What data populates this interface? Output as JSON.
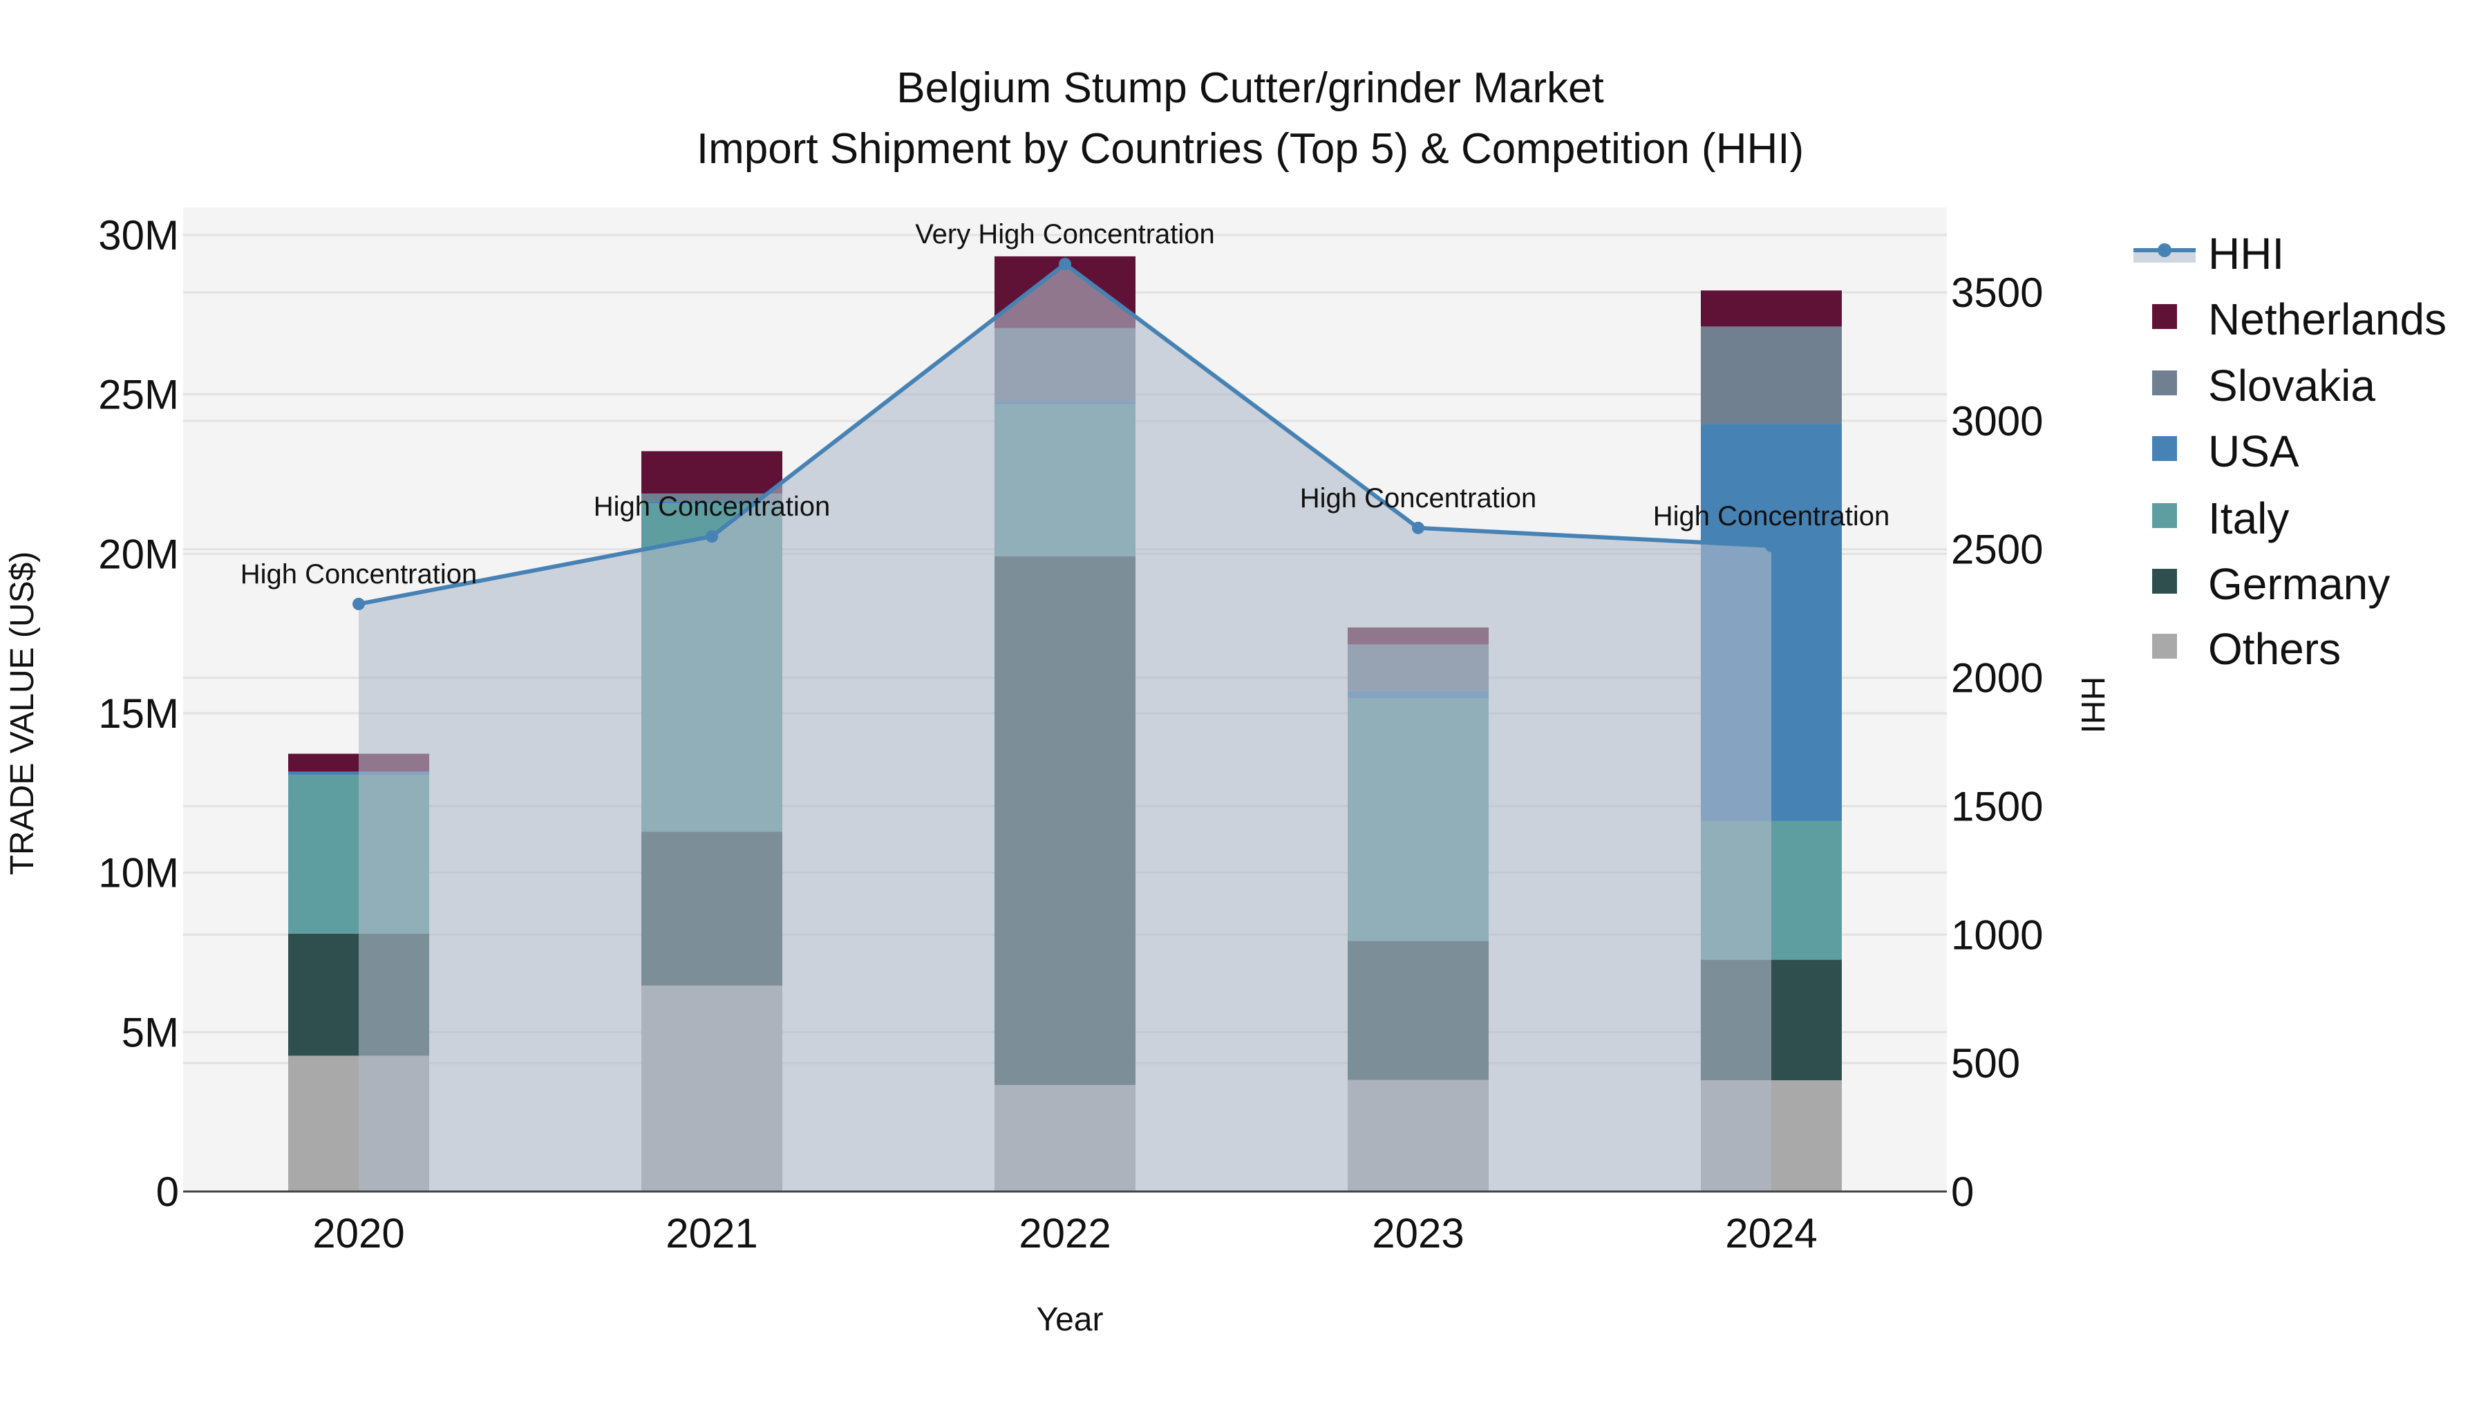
{
  "chart_data": {
    "type": "bar",
    "subtype": "stacked bar with line overlay (secondary axis)",
    "title": "Belgium Stump Cutter/grinder Market",
    "subtitle": "Import Shipment by Countries (Top 5) & Competition (HHI)",
    "xlabel": "Year",
    "ylabel": "TRADE VALUE (US$)",
    "y2label": "HHI",
    "categories": [
      "2020",
      "2021",
      "2022",
      "2023",
      "2024"
    ],
    "ylim": [
      0,
      30800000
    ],
    "y2lim": [
      0,
      3830
    ],
    "yticks": [
      0,
      5000000,
      10000000,
      15000000,
      20000000,
      25000000,
      30000000
    ],
    "ytick_labels": [
      "0",
      "5M",
      "10M",
      "15M",
      "20M",
      "25M",
      "30M"
    ],
    "y2ticks": [
      0,
      500,
      1000,
      1500,
      2000,
      2500,
      3000,
      3500
    ],
    "y2tick_labels": [
      "0",
      "500",
      "1000",
      "1500",
      "2000",
      "2500",
      "3000",
      "3500"
    ],
    "grid": true,
    "legend_position": "right",
    "series": [
      {
        "name": "Others",
        "color": "#a9a9a9",
        "values": [
          4260000,
          6460000,
          3340000,
          3500000,
          3490000
        ]
      },
      {
        "name": "Germany",
        "color": "#2f4f4f",
        "values": [
          3830000,
          4830000,
          16580000,
          4360000,
          3780000
        ]
      },
      {
        "name": "Italy",
        "color": "#5f9ea0",
        "values": [
          4980000,
          10300000,
          4770000,
          7600000,
          4350000
        ]
      },
      {
        "name": "USA",
        "color": "#4682b4",
        "values": [
          100000,
          60000,
          100000,
          250000,
          12460000
        ]
      },
      {
        "name": "Slovakia",
        "color": "#708090",
        "values": [
          0,
          240000,
          2290000,
          1450000,
          3050000
        ]
      },
      {
        "name": "Netherlands",
        "color": "#601236",
        "values": [
          560000,
          1330000,
          2250000,
          530000,
          1130000
        ]
      }
    ],
    "line_series": {
      "name": "HHI",
      "axis": "y2",
      "color": "#4682b4",
      "fill_color": "rgba(176,186,202,0.6)",
      "values": [
        2287,
        2550,
        3610,
        2583,
        2513
      ]
    },
    "annotations": [
      {
        "category": "2020",
        "text": "High Concentration"
      },
      {
        "category": "2021",
        "text": "High Concentration"
      },
      {
        "category": "2022",
        "text": "Very High Concentration"
      },
      {
        "category": "2023",
        "text": "High Concentration"
      },
      {
        "category": "2024",
        "text": "High Concentration"
      }
    ]
  },
  "legend": {
    "items": [
      {
        "name": "HHI",
        "type": "line",
        "color": "#4682b4"
      },
      {
        "name": "Netherlands",
        "type": "box",
        "color": "#601236"
      },
      {
        "name": "Slovakia",
        "type": "box",
        "color": "#708090"
      },
      {
        "name": "USA",
        "type": "box",
        "color": "#4682b4"
      },
      {
        "name": "Italy",
        "type": "box",
        "color": "#5f9ea0"
      },
      {
        "name": "Germany",
        "type": "box",
        "color": "#2f4f4f"
      },
      {
        "name": "Others",
        "type": "box",
        "color": "#a9a9a9"
      }
    ]
  },
  "colors": {
    "plot_bg": "#f4f4f4",
    "grid": "#e2e2e2",
    "axis_line": "#444444"
  }
}
